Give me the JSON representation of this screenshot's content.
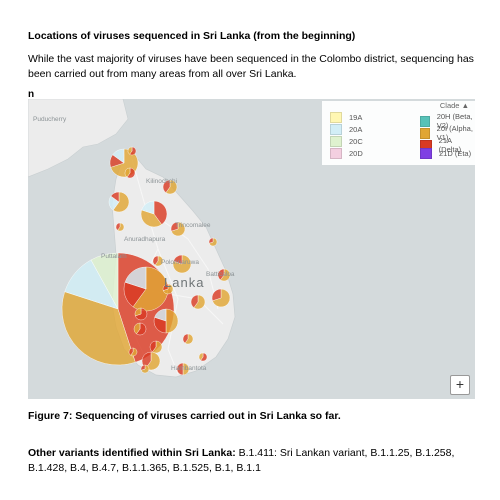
{
  "heading": "Locations of viruses sequenced in Sri Lanka (from the beginning)",
  "intro": "While the vast majority of viruses have been sequenced in the Colombo district, sequencing has been carried out from many areas from all over Sri Lanka.",
  "panel_letter": "n",
  "map": {
    "legend_title": "Clade",
    "legend": [
      {
        "label": "19A",
        "color": "#fff7b3"
      },
      {
        "label": "20A",
        "color": "#d2eef6"
      },
      {
        "label": "20C",
        "color": "#dff2cf"
      },
      {
        "label": "20D",
        "color": "#f3cfe0"
      },
      {
        "label": "20H (Beta, V2)",
        "color": "#57c2b8"
      },
      {
        "label": "20I (Alpha, V1)",
        "color": "#e0a634"
      },
      {
        "label": "21A (Delta)",
        "color": "#d93a23"
      },
      {
        "label": "21D (Eta)",
        "color": "#7f3fe3"
      }
    ],
    "place_labels": [
      {
        "label": "Puducherry"
      },
      {
        "label": "Kilinochchi"
      },
      {
        "label": "Anuradhapura"
      },
      {
        "label": "Trincomalee"
      },
      {
        "label": "Puttalam"
      },
      {
        "label": "Polonnaruwa"
      },
      {
        "label": "Batticaloa"
      },
      {
        "label": "Lanka"
      },
      {
        "label": "Hambantota"
      }
    ],
    "zoom_label": "+",
    "land_color": "#ececec",
    "sea_color": "#d4dadc"
  },
  "caption": "Figure 7: Sequencing of viruses carried out in Sri Lanka so far.",
  "variants": {
    "label": "Other variants identified within Sri Lanka:",
    "text": " B.1.411: Sri Lankan variant, B.1.1.25, B.1.258, B.1.428, B.4, B.4.7, B.1.1.365, B.1.525, B.1, B.1.1"
  }
}
